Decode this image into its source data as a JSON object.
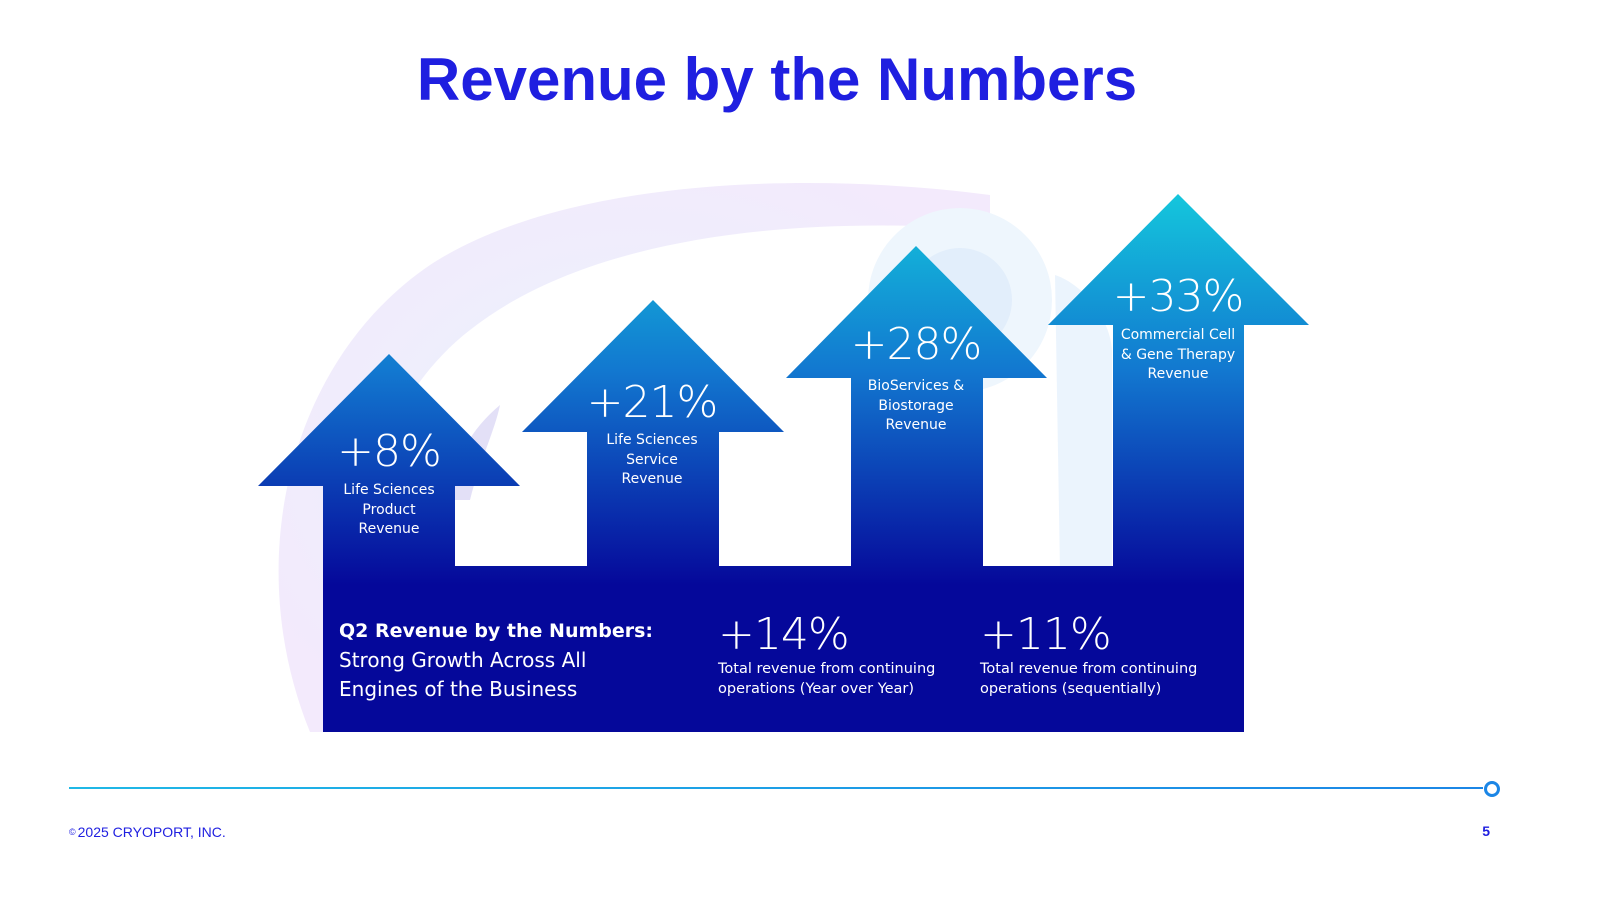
{
  "slide": {
    "title": "Revenue by the Numbers",
    "page_number": "5"
  },
  "arrows": [
    {
      "value": "+8%",
      "label_lines": [
        "Life Sciences",
        "Product",
        "Revenue"
      ]
    },
    {
      "value": "+21%",
      "label_lines": [
        "Life Sciences",
        "Service",
        "Revenue"
      ]
    },
    {
      "value": "+28%",
      "label_lines": [
        "BioServices &",
        "Biostorage",
        "Revenue"
      ]
    },
    {
      "value": "+33%",
      "label_lines": [
        "Commercial Cell",
        "& Gene Therapy",
        "Revenue"
      ]
    }
  ],
  "summary": {
    "heading": "Q2 Revenue by the Numbers:",
    "body_lines": [
      "Strong Growth Across All",
      "Engines of the Business"
    ]
  },
  "totals": [
    {
      "value": "+14%",
      "label_lines": [
        "Total revenue from continuing",
        "operations (Year over Year)"
      ]
    },
    {
      "value": "+11%",
      "label_lines": [
        "Total revenue from continuing",
        "operations (sequentially)"
      ]
    }
  ],
  "footer": {
    "copyright_symbol": "©",
    "copyright_text": "2025 CRYOPORT, INC."
  },
  "colors": {
    "title": "#1f1fe0",
    "arrow_top": "#14c6dc",
    "arrow_bottom": "#05089a",
    "footer_line": "#1fb8e6"
  }
}
